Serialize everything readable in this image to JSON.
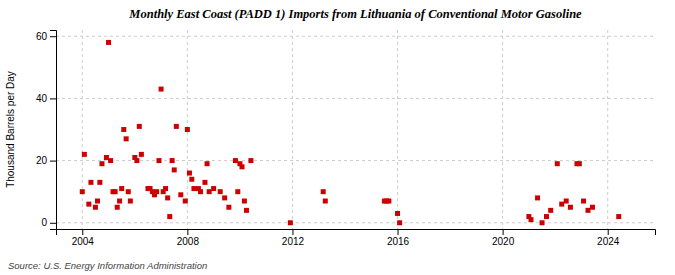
{
  "chart_data": {
    "type": "scatter",
    "title": "Monthly East Coast (PADD 1) Imports from Lithuania of Conventional Motor Gasoline",
    "y_label": "Thousand Barrels per Day",
    "annotations": [
      "Source: U.S. Energy Information Administration"
    ],
    "color": "#cc0000",
    "marker": "square",
    "grid": true,
    "xlim": [
      2003.0,
      2025.8
    ],
    "ylim": [
      -2,
      62
    ],
    "xticks": [
      2004,
      2008,
      2012,
      2016,
      2020,
      2024
    ],
    "yticks": [
      0,
      20,
      40,
      60
    ],
    "x": [
      2004.0,
      2004.08,
      2004.25,
      2004.33,
      2004.5,
      2004.58,
      2004.67,
      2004.75,
      2004.92,
      2005.0,
      2005.08,
      2005.17,
      2005.25,
      2005.33,
      2005.42,
      2005.5,
      2005.58,
      2005.67,
      2005.75,
      2005.83,
      2006.0,
      2006.08,
      2006.17,
      2006.25,
      2006.5,
      2006.58,
      2006.67,
      2006.75,
      2006.83,
      2006.92,
      2007.0,
      2007.08,
      2007.17,
      2007.25,
      2007.33,
      2007.42,
      2007.5,
      2007.58,
      2007.75,
      2007.92,
      2008.0,
      2008.08,
      2008.17,
      2008.25,
      2008.42,
      2008.5,
      2008.67,
      2008.75,
      2008.83,
      2009.0,
      2009.25,
      2009.42,
      2009.58,
      2009.83,
      2009.92,
      2010.0,
      2010.08,
      2010.17,
      2010.25,
      2010.42,
      2011.92,
      2013.17,
      2013.25,
      2015.5,
      2015.58,
      2015.67,
      2016.0,
      2016.08,
      2021.0,
      2021.08,
      2021.33,
      2021.5,
      2021.67,
      2021.83,
      2022.08,
      2022.25,
      2022.42,
      2022.58,
      2022.83,
      2022.92,
      2023.08,
      2023.25,
      2023.42,
      2024.42
    ],
    "values": [
      10,
      22,
      6,
      13,
      5,
      7,
      13,
      19,
      21,
      58,
      20,
      10,
      10,
      5,
      7,
      11,
      30,
      27,
      10,
      7,
      21,
      20,
      31,
      22,
      11,
      11,
      10,
      9,
      10,
      20,
      43,
      10,
      11,
      8,
      2,
      20,
      17,
      31,
      9,
      7,
      30,
      16,
      14,
      11,
      11,
      10,
      13,
      19,
      10,
      11,
      10,
      8,
      5,
      20,
      10,
      19,
      18,
      7,
      4,
      20,
      0,
      10,
      7,
      7,
      7,
      7,
      3,
      0,
      2,
      1,
      8,
      0,
      2,
      4,
      19,
      6,
      7,
      5,
      19,
      19,
      7,
      4,
      5,
      2
    ]
  }
}
